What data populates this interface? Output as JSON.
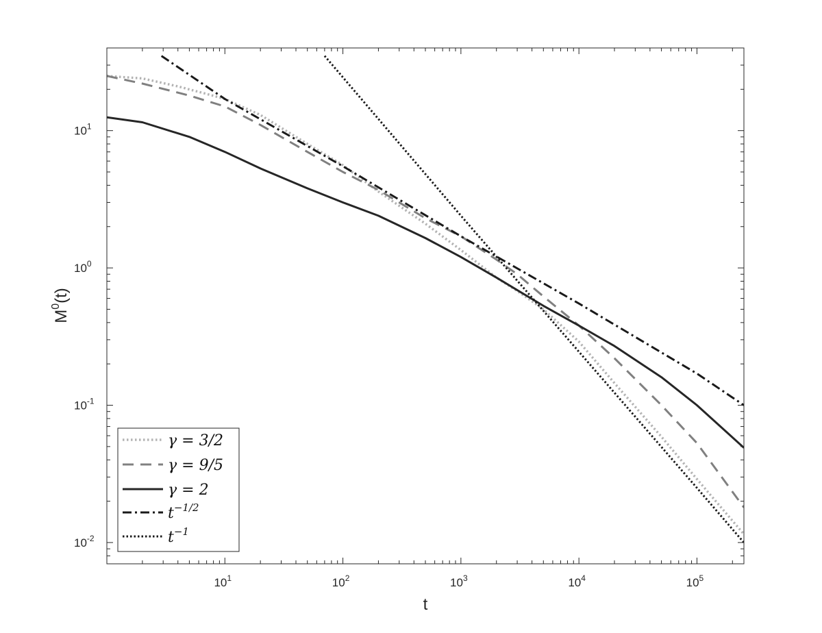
{
  "chart_data": {
    "type": "line",
    "title": "",
    "xlabel": "t",
    "ylabel_base": "M",
    "ylabel_sup": "0",
    "ylabel_tail": "(t)",
    "xscale": "log",
    "yscale": "log",
    "xlim": [
      1,
      250000
    ],
    "ylim": [
      0.007,
      40
    ],
    "x_ticks": [
      {
        "value": 10,
        "base": "10",
        "exp": "1"
      },
      {
        "value": 100,
        "base": "10",
        "exp": "2"
      },
      {
        "value": 1000,
        "base": "10",
        "exp": "3"
      },
      {
        "value": 10000,
        "base": "10",
        "exp": "4"
      },
      {
        "value": 100000,
        "base": "10",
        "exp": "5"
      }
    ],
    "y_ticks": [
      {
        "value": 0.01,
        "base": "10",
        "exp": "-2"
      },
      {
        "value": 0.1,
        "base": "10",
        "exp": "-1"
      },
      {
        "value": 1,
        "base": "10",
        "exp": "0"
      },
      {
        "value": 10,
        "base": "10",
        "exp": "1"
      }
    ],
    "grid": false,
    "legend_position": "bottom-left",
    "series": [
      {
        "name_main": "γ = 3/2",
        "name_sup": "",
        "color": "#b3b3b3",
        "style": "dotted",
        "x": [
          1,
          2,
          4,
          7,
          10,
          20,
          50,
          100,
          200,
          500,
          1000,
          2000,
          3000,
          5000,
          10000,
          20000,
          50000,
          100000,
          250000
        ],
        "y": [
          25,
          24,
          21,
          18.5,
          17,
          13,
          8,
          5.6,
          3.6,
          2.1,
          1.35,
          0.85,
          0.68,
          0.5,
          0.29,
          0.145,
          0.059,
          0.029,
          0.0115
        ]
      },
      {
        "name_main": "γ = 9/5",
        "name_sup": "",
        "color": "#808080",
        "style": "dashed",
        "x": [
          1,
          2,
          5,
          10,
          20,
          50,
          100,
          200,
          500,
          1000,
          2000,
          3000,
          5000,
          10000,
          20000,
          50000,
          100000,
          250000
        ],
        "y": [
          25,
          22,
          18,
          15,
          11,
          7,
          5,
          3.7,
          2.3,
          1.7,
          1.15,
          0.9,
          0.62,
          0.38,
          0.22,
          0.1,
          0.053,
          0.018
        ]
      },
      {
        "name_main": "γ = 2",
        "name_sup": "",
        "color": "#262626",
        "style": "solid",
        "x": [
          1,
          2,
          5,
          10,
          20,
          50,
          100,
          200,
          500,
          1000,
          2000,
          5000,
          10000,
          20000,
          50000,
          100000,
          250000
        ],
        "y": [
          12.5,
          11.5,
          9,
          7,
          5.3,
          3.8,
          3,
          2.4,
          1.65,
          1.2,
          0.85,
          0.53,
          0.38,
          0.27,
          0.16,
          0.1,
          0.049
        ]
      },
      {
        "name_main": "t",
        "name_sup": "−1/2",
        "color": "#1a1a1a",
        "style": "dashdot",
        "x": [
          2.9,
          10,
          100,
          1000,
          10000,
          100000,
          250000
        ],
        "y": [
          35,
          17,
          5.5,
          1.7,
          0.55,
          0.17,
          0.1
        ]
      },
      {
        "name_main": "t",
        "name_sup": "−1",
        "color": "#1a1a1a",
        "style": "dotted-dark",
        "x": [
          70,
          1000,
          10000,
          100000,
          250000
        ],
        "y": [
          35,
          2.4,
          0.245,
          0.025,
          0.01
        ]
      }
    ]
  }
}
